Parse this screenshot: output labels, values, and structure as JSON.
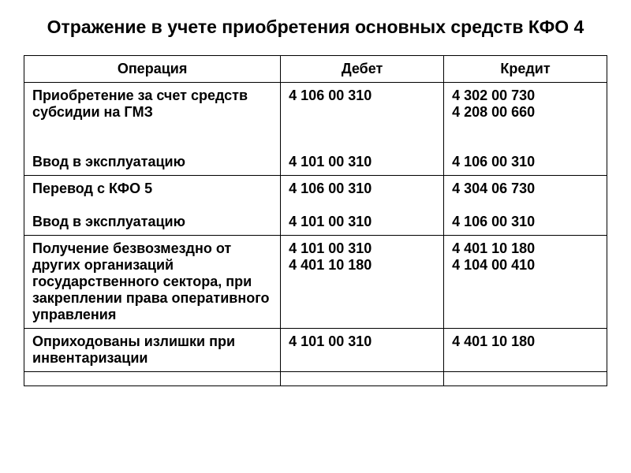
{
  "title": "Отражение в учете приобретения основных средств КФО 4",
  "table": {
    "headers": {
      "operation": "Операция",
      "debit": "Дебет",
      "credit": "Кредит"
    },
    "rows": [
      {
        "operation": "Приобретение за счет средств субсидии на ГМЗ\n\n\nВвод в эксплуатацию",
        "debit": "4 106 00 310\n\n\n\n4 101 00 310",
        "credit": "4 302 00 730\n4 208 00 660\n\n\n4 106 00 310"
      },
      {
        "operation": "Перевод с КФО 5\n\nВвод в эксплуатацию",
        "debit": "4 106 00 310\n\n4 101 00 310",
        "credit": "4 304 06 730\n\n4 106 00 310"
      },
      {
        "operation": "Получение безвозмездно от других организаций государственного сектора, при закреплении права оперативного управления",
        "debit": "4 101 00 310\n4 401 10 180",
        "credit": "4 401 10 180\n4 104 00 410"
      },
      {
        "operation": "Оприходованы излишки при инвентаризации",
        "debit": "4 101 00 310",
        "credit": "4 401 10 180"
      },
      {
        "operation": "",
        "debit": "",
        "credit": ""
      }
    ]
  }
}
